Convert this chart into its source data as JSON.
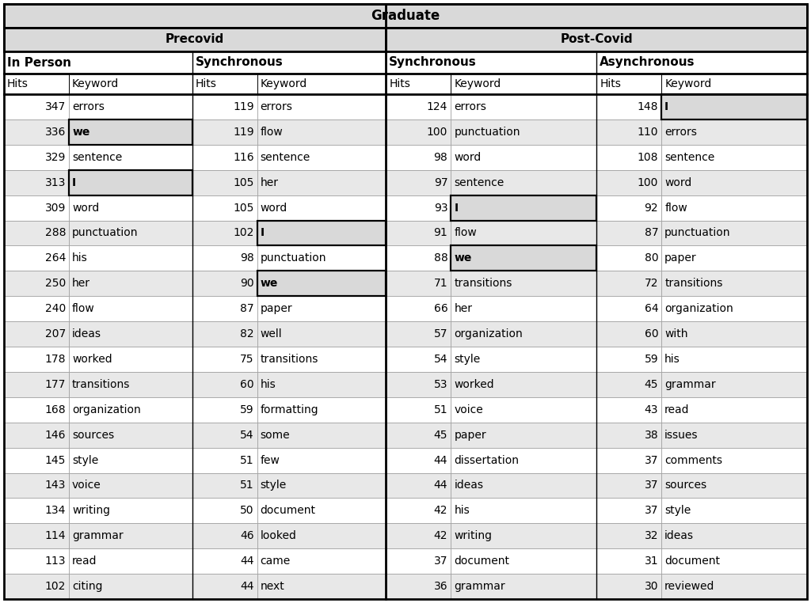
{
  "title": "Graduate",
  "precovid_label": "Precovid",
  "postcovid_label": "Post-Covid",
  "inperson_label": "In Person",
  "precovid_sync_label": "Synchronous",
  "postcovid_sync_label": "Synchronous",
  "async_label": "Asynchronous",
  "inperson_data": [
    [
      347,
      "errors"
    ],
    [
      336,
      "we"
    ],
    [
      329,
      "sentence"
    ],
    [
      313,
      "I"
    ],
    [
      309,
      "word"
    ],
    [
      288,
      "punctuation"
    ],
    [
      264,
      "his"
    ],
    [
      250,
      "her"
    ],
    [
      240,
      "flow"
    ],
    [
      207,
      "ideas"
    ],
    [
      178,
      "worked"
    ],
    [
      177,
      "transitions"
    ],
    [
      168,
      "organization"
    ],
    [
      146,
      "sources"
    ],
    [
      145,
      "style"
    ],
    [
      143,
      "voice"
    ],
    [
      134,
      "writing"
    ],
    [
      114,
      "grammar"
    ],
    [
      113,
      "read"
    ],
    [
      102,
      "citing"
    ]
  ],
  "precovid_sync_data": [
    [
      119,
      "errors"
    ],
    [
      119,
      "flow"
    ],
    [
      116,
      "sentence"
    ],
    [
      105,
      "her"
    ],
    [
      105,
      "word"
    ],
    [
      102,
      "I"
    ],
    [
      98,
      "punctuation"
    ],
    [
      90,
      "we"
    ],
    [
      87,
      "paper"
    ],
    [
      82,
      "well"
    ],
    [
      75,
      "transitions"
    ],
    [
      60,
      "his"
    ],
    [
      59,
      "formatting"
    ],
    [
      54,
      "some"
    ],
    [
      51,
      "few"
    ],
    [
      51,
      "style"
    ],
    [
      50,
      "document"
    ],
    [
      46,
      "looked"
    ],
    [
      44,
      "came"
    ],
    [
      44,
      "next"
    ]
  ],
  "postcovid_sync_data": [
    [
      124,
      "errors"
    ],
    [
      100,
      "punctuation"
    ],
    [
      98,
      "word"
    ],
    [
      97,
      "sentence"
    ],
    [
      93,
      "I"
    ],
    [
      91,
      "flow"
    ],
    [
      88,
      "we"
    ],
    [
      71,
      "transitions"
    ],
    [
      66,
      "her"
    ],
    [
      57,
      "organization"
    ],
    [
      54,
      "style"
    ],
    [
      53,
      "worked"
    ],
    [
      51,
      "voice"
    ],
    [
      45,
      "paper"
    ],
    [
      44,
      "dissertation"
    ],
    [
      44,
      "ideas"
    ],
    [
      42,
      "his"
    ],
    [
      42,
      "writing"
    ],
    [
      37,
      "document"
    ],
    [
      36,
      "grammar"
    ]
  ],
  "async_data": [
    [
      148,
      "I"
    ],
    [
      110,
      "errors"
    ],
    [
      108,
      "sentence"
    ],
    [
      100,
      "word"
    ],
    [
      92,
      "flow"
    ],
    [
      87,
      "punctuation"
    ],
    [
      80,
      "paper"
    ],
    [
      72,
      "transitions"
    ],
    [
      64,
      "organization"
    ],
    [
      60,
      "with"
    ],
    [
      59,
      "his"
    ],
    [
      45,
      "grammar"
    ],
    [
      43,
      "read"
    ],
    [
      38,
      "issues"
    ],
    [
      37,
      "comments"
    ],
    [
      37,
      "sources"
    ],
    [
      37,
      "style"
    ],
    [
      32,
      "ideas"
    ],
    [
      31,
      "document"
    ],
    [
      30,
      "reviewed"
    ]
  ],
  "highlighted_keywords": [
    "we",
    "I"
  ],
  "bg_title": "#d9d9d9",
  "bg_group": "#d9d9d9",
  "bg_white": "#ffffff",
  "bg_stripe": "#e8e8e8",
  "highlight_bg": "#d9d9d9",
  "border_thick": 2.0,
  "border_thin": 0.7,
  "text_color": "#000000",
  "title_fontsize": 12,
  "header_fontsize": 11,
  "subheader_fontsize": 11,
  "colhdr_fontsize": 10,
  "data_fontsize": 10
}
